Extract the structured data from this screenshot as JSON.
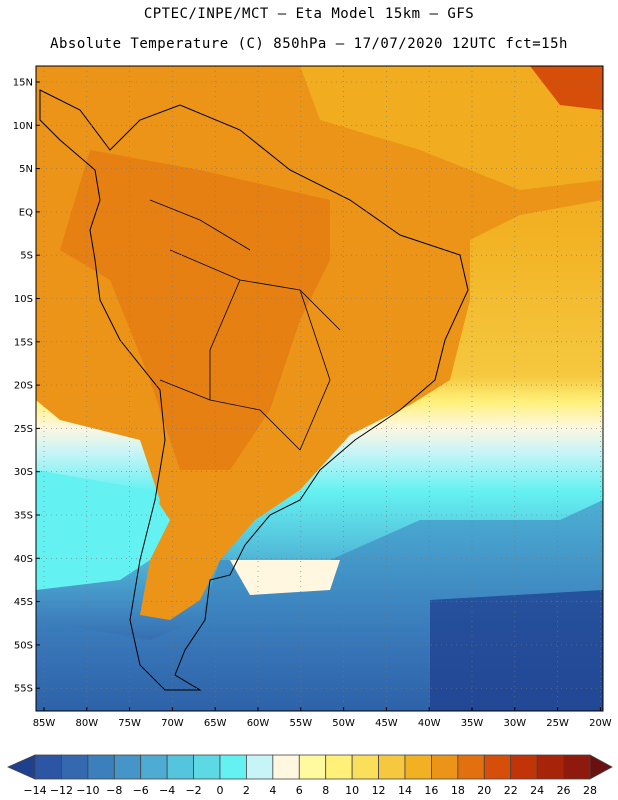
{
  "header": {
    "line1": "CPTEC/INPE/MCT –  Eta Model 15km – GFS",
    "line2": "Absolute Temperature (C) 850hPa – 17/07/2020 12UTC fct=15h"
  },
  "map": {
    "lat_labels": [
      "15N",
      "10N",
      "5N",
      "EQ",
      "5S",
      "10S",
      "15S",
      "20S",
      "25S",
      "30S",
      "35S",
      "40S",
      "45S",
      "50S",
      "55S"
    ],
    "lon_labels": [
      "85W",
      "80W",
      "75W",
      "70W",
      "65W",
      "60W",
      "55W",
      "50W",
      "45W",
      "40W",
      "35W",
      "30W",
      "25W",
      "20W"
    ]
  },
  "colorbar": {
    "labels": [
      "-14",
      "-12",
      "-10",
      "-8",
      "-6",
      "-4",
      "-2",
      "0",
      "2",
      "4",
      "6",
      "8",
      "10",
      "12",
      "14",
      "16",
      "18",
      "20",
      "22",
      "24",
      "26",
      "28"
    ],
    "colors": [
      "#1f3f8f",
      "#2c55a4",
      "#3469b0",
      "#3b7fbd",
      "#4595c8",
      "#4eacd3",
      "#55c4dd",
      "#5dd9e6",
      "#64f1f1",
      "#c6f4f7",
      "#fff7df",
      "#fffaa0",
      "#fff07a",
      "#f9df5a",
      "#f5c83f",
      "#f2b122",
      "#ec9417",
      "#e2700f",
      "#d54e0a",
      "#c03408",
      "#a82409",
      "#8d1a0d",
      "#6a1010"
    ]
  }
}
